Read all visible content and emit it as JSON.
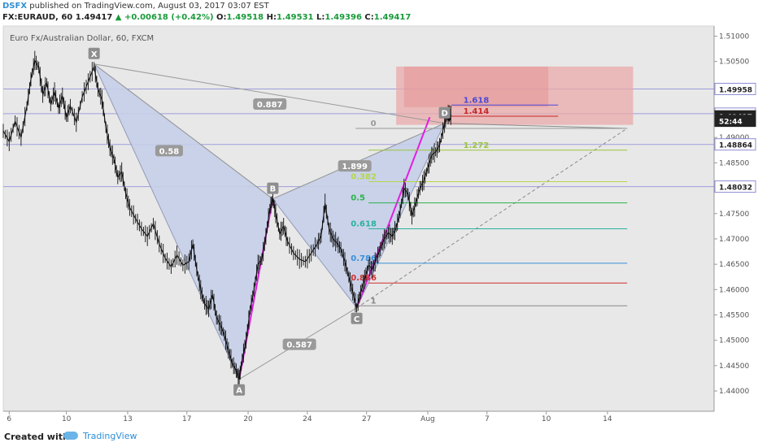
{
  "header": {
    "author": "DSFX",
    "published_text": "published on TradingView.com, August 03, 2017 03:07 EST",
    "symbol": "FX:EURAUD, 60",
    "last": "1.49417",
    "change": "▲ +0.00618 (+0.42%)",
    "o_label": "O:",
    "o_val": "1.49518",
    "h_label": "H:",
    "h_val": "1.49531",
    "l_label": "L:",
    "l_val": "1.49396",
    "c_label": "C:",
    "c_val": "1.49417"
  },
  "footer": {
    "created_with": "Created with",
    "brand": "TradingView"
  },
  "colors": {
    "bg": "#e8e8e8",
    "pattern_fill": "#c6d0e8",
    "zone_fill": "#eba9a9",
    "magenta": "#e11fe1",
    "hline": "#9d9ddc"
  },
  "chart_data": {
    "type": "line",
    "title": "Euro Fx/Australian Dollar, 60, FXCM",
    "x_ticks": [
      "6",
      "10",
      "13",
      "17",
      "20",
      "24",
      "27",
      "Aug",
      "7",
      "10",
      "14"
    ],
    "y_ticks": [
      "1.51000",
      "1.50500",
      "1.50000",
      "1.49500",
      "1.49000",
      "1.48500",
      "1.48000",
      "1.47500",
      "1.47000",
      "1.46500",
      "1.46000",
      "1.45500",
      "1.45000",
      "1.44500",
      "1.44000"
    ],
    "ylim": [
      1.436,
      1.512
    ],
    "price_badges": [
      {
        "label": "1.49958",
        "value": 1.49958,
        "style": "outline"
      },
      {
        "label": "1.49471",
        "value": 1.49471,
        "style": "outline"
      },
      {
        "label": "1.49417",
        "value": 1.49417,
        "style": "dark"
      },
      {
        "label": "52:44",
        "value": 1.4933,
        "style": "dark"
      },
      {
        "label": "1.48864",
        "value": 1.48864,
        "style": "outline"
      },
      {
        "label": "1.48032",
        "value": 1.48032,
        "style": "outline"
      }
    ],
    "horizontal_lines": [
      1.49958,
      1.49471,
      1.48864,
      1.48032
    ],
    "pattern_points": [
      {
        "label": "X",
        "t": 46,
        "y": 1.5045
      },
      {
        "label": "A",
        "t": 119.5,
        "y": 1.4423
      },
      {
        "label": "B",
        "t": 136.5,
        "y": 1.4779
      },
      {
        "label": "C",
        "t": 179,
        "y": 1.4564
      },
      {
        "label": "D",
        "t": 223.5,
        "y": 1.4928
      }
    ],
    "ratio_labels": [
      {
        "label": "0.887",
        "t": 135,
        "y": 1.4966
      },
      {
        "label": "0.58",
        "t": 84,
        "y": 1.4874
      },
      {
        "label": "1.899",
        "t": 178,
        "y": 1.4844
      },
      {
        "label": "0.587",
        "t": 150,
        "y": 1.4492
      }
    ],
    "fib_levels": [
      {
        "label": "0",
        "value": 1.4918,
        "color": "#999999"
      },
      {
        "label": "1.618",
        "value": 1.4964,
        "color": "#4a4ad8"
      },
      {
        "label": "1.414",
        "value": 1.4942,
        "color": "#c62828"
      },
      {
        "label": "1.272",
        "value": 1.4875,
        "color": "#9ac43a"
      },
      {
        "label": "0.382",
        "value": 1.4813,
        "color": "#b5d64a"
      },
      {
        "label": "0.5",
        "value": 1.4771,
        "color": "#2bb24c"
      },
      {
        "label": "0.618",
        "value": 1.472,
        "color": "#2bb0a0"
      },
      {
        "label": "0.786",
        "value": 1.4652,
        "color": "#3a8fd8"
      },
      {
        "label": "0.886",
        "value": 1.4613,
        "color": "#d32f2f"
      },
      {
        "label": "1",
        "value": 1.4568,
        "color": "#888888"
      }
    ],
    "price_path": [
      [
        0,
        1.4913
      ],
      [
        3,
        1.4892
      ],
      [
        6,
        1.4932
      ],
      [
        9,
        1.49
      ],
      [
        12,
        1.4962
      ],
      [
        14,
        1.5015
      ],
      [
        16,
        1.5052
      ],
      [
        18,
        1.5038
      ],
      [
        20,
        1.4985
      ],
      [
        22,
        1.5008
      ],
      [
        24,
        1.4966
      ],
      [
        26,
        1.499
      ],
      [
        28,
        1.4958
      ],
      [
        30,
        1.4982
      ],
      [
        32,
        1.494
      ],
      [
        34,
        1.4962
      ],
      [
        37,
        1.493
      ],
      [
        40,
        1.498
      ],
      [
        43,
        1.501
      ],
      [
        46,
        1.504
      ],
      [
        48,
        1.4995
      ],
      [
        50,
        1.4975
      ],
      [
        52,
        1.492
      ],
      [
        54,
        1.488
      ],
      [
        56,
        1.4858
      ],
      [
        58,
        1.4822
      ],
      [
        60,
        1.4832
      ],
      [
        62,
        1.479
      ],
      [
        64,
        1.4762
      ],
      [
        67,
        1.474
      ],
      [
        70,
        1.472
      ],
      [
        73,
        1.4705
      ],
      [
        76,
        1.473
      ],
      [
        79,
        1.469
      ],
      [
        82,
        1.4662
      ],
      [
        85,
        1.4645
      ],
      [
        88,
        1.4668
      ],
      [
        91,
        1.4648
      ],
      [
        94,
        1.4655
      ],
      [
        96,
        1.469
      ],
      [
        98,
        1.464
      ],
      [
        100,
        1.46
      ],
      [
        102,
        1.4572
      ],
      [
        104,
        1.4562
      ],
      [
        106,
        1.459
      ],
      [
        108,
        1.4545
      ],
      [
        110,
        1.453
      ],
      [
        112,
        1.451
      ],
      [
        114,
        1.448
      ],
      [
        116,
        1.4455
      ],
      [
        118,
        1.444
      ],
      [
        119.5,
        1.4423
      ],
      [
        121,
        1.4462
      ],
      [
        123,
        1.45
      ],
      [
        125,
        1.456
      ],
      [
        127,
        1.46
      ],
      [
        129,
        1.465
      ],
      [
        131,
        1.466
      ],
      [
        133,
        1.4705
      ],
      [
        135,
        1.476
      ],
      [
        136.5,
        1.4779
      ],
      [
        138,
        1.475
      ],
      [
        140,
        1.471
      ],
      [
        142,
        1.4725
      ],
      [
        144,
        1.4695
      ],
      [
        147,
        1.4672
      ],
      [
        150,
        1.466
      ],
      [
        153,
        1.4655
      ],
      [
        156,
        1.4672
      ],
      [
        159,
        1.469
      ],
      [
        161,
        1.4706
      ],
      [
        163,
        1.477
      ],
      [
        165,
        1.472
      ],
      [
        167,
        1.47
      ],
      [
        169,
        1.4692
      ],
      [
        171,
        1.468
      ],
      [
        173,
        1.4655
      ],
      [
        175,
        1.4625
      ],
      [
        177,
        1.4595
      ],
      [
        179,
        1.4564
      ],
      [
        181,
        1.4595
      ],
      [
        183,
        1.462
      ],
      [
        185,
        1.4648
      ],
      [
        187,
        1.464
      ],
      [
        189,
        1.4662
      ],
      [
        191,
        1.468
      ],
      [
        193,
        1.47
      ],
      [
        195,
        1.4712
      ],
      [
        197,
        1.4705
      ],
      [
        199,
        1.4722
      ],
      [
        201,
        1.4755
      ],
      [
        203,
        1.48
      ],
      [
        205,
        1.4788
      ],
      [
        207,
        1.4745
      ],
      [
        209,
        1.4772
      ],
      [
        211,
        1.48
      ],
      [
        213,
        1.4815
      ],
      [
        215,
        1.484
      ],
      [
        217,
        1.4865
      ],
      [
        219,
        1.4872
      ],
      [
        221,
        1.4885
      ],
      [
        223.5,
        1.4928
      ],
      [
        225,
        1.4945
      ],
      [
        226,
        1.4947
      ],
      [
        227,
        1.4942
      ]
    ]
  }
}
